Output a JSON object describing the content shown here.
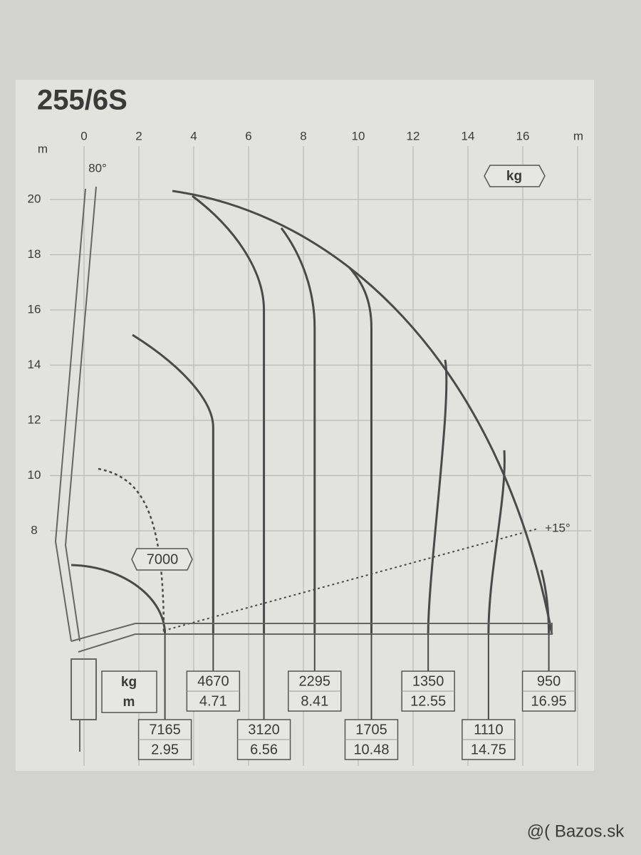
{
  "title": "255/6S",
  "x_axis": {
    "unit": "m",
    "ticks": [
      0,
      2,
      4,
      6,
      8,
      10,
      12,
      14,
      16
    ]
  },
  "y_axis": {
    "unit": "m",
    "ticks": [
      8,
      10,
      12,
      14,
      16,
      18,
      20
    ]
  },
  "annotations": {
    "boom_angle": "80°",
    "extension_angle": "+15°",
    "dashed_load": "7000",
    "unit_tag": "kg"
  },
  "legend": {
    "kg": "kg",
    "m": "m"
  },
  "loads": [
    {
      "kg": 7165,
      "m": 2.95
    },
    {
      "kg": 4670,
      "m": 4.71
    },
    {
      "kg": 3120,
      "m": 6.56
    },
    {
      "kg": 2295,
      "m": 8.41
    },
    {
      "kg": 1705,
      "m": 10.48
    },
    {
      "kg": 1350,
      "m": 12.55
    },
    {
      "kg": 1110,
      "m": 14.75
    },
    {
      "kg": 950,
      "m": 16.95
    }
  ],
  "watermark": "@( Bazos.sk"
}
